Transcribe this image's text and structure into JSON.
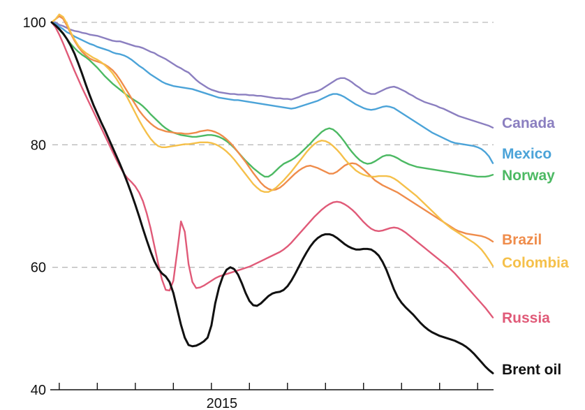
{
  "chart_data": {
    "type": "line",
    "title": "",
    "xlabel": "",
    "ylabel": "",
    "ylim": [
      40,
      100
    ],
    "yticks": [
      40,
      60,
      80,
      100
    ],
    "gridlines_at": [
      60,
      80,
      100
    ],
    "x_tick_label": "2015",
    "x_tick_label_index": 40,
    "x_tick_count": 12,
    "x_tick_spacing": 10,
    "x": [
      0,
      1,
      2,
      3,
      4,
      5,
      6,
      7,
      8,
      9,
      10,
      11,
      12,
      13,
      14,
      15,
      16,
      17,
      18,
      19,
      20,
      21,
      22,
      23,
      24,
      25,
      26,
      27,
      28,
      29,
      30,
      31,
      32,
      33,
      34,
      35,
      36,
      37,
      38,
      39,
      40,
      41,
      42,
      43,
      44,
      45,
      46,
      47,
      48,
      49,
      50,
      51,
      52,
      53,
      54,
      55,
      56,
      57,
      58,
      59,
      60,
      61,
      62,
      63,
      64,
      65,
      66,
      67,
      68,
      69,
      70,
      71,
      72,
      73,
      74,
      75,
      76,
      77,
      78,
      79,
      80,
      81,
      82,
      83,
      84,
      85,
      86,
      87,
      88,
      89,
      90,
      91,
      92,
      93,
      94,
      95,
      96,
      97,
      98,
      99,
      100,
      101,
      102,
      103,
      104,
      105,
      106,
      107,
      108,
      109,
      110,
      111,
      112,
      113,
      114,
      115,
      116
    ],
    "series": [
      {
        "name": "Canada",
        "color": "#8b7fc0",
        "values": [
          100,
          100,
          99.6,
          99.4,
          99.1,
          98.8,
          98.6,
          98.5,
          98.3,
          98.2,
          98,
          97.9,
          97.8,
          97.6,
          97.4,
          97.2,
          97,
          96.9,
          96.9,
          96.7,
          96.5,
          96.3,
          96.1,
          96,
          95.8,
          95.5,
          95.2,
          95,
          94.6,
          94.3,
          94,
          93.6,
          93.2,
          92.8,
          92.5,
          92.1,
          91.8,
          91.2,
          90.6,
          90.1,
          89.7,
          89.3,
          89,
          88.8,
          88.6,
          88.5,
          88.4,
          88.3,
          88.3,
          88.2,
          88.2,
          88.2,
          88.1,
          88.1,
          88,
          88,
          87.9,
          87.8,
          87.7,
          87.6,
          87.6,
          87.5,
          87.5,
          87.4,
          87.6,
          87.8,
          88.1,
          88.3,
          88.5,
          88.6,
          88.8,
          89.1,
          89.5,
          89.9,
          90.3,
          90.7,
          90.9,
          90.9,
          90.6,
          90.2,
          89.7,
          89.3,
          88.8,
          88.5,
          88.3,
          88.3,
          88.6,
          88.9,
          89.2,
          89.4,
          89.5,
          89.3,
          89,
          88.7,
          88.3,
          88,
          87.6,
          87.3,
          87,
          86.8,
          86.6,
          86.4,
          86.1,
          85.9,
          85.6,
          85.3,
          85,
          84.7,
          84.5,
          84.3,
          84.1,
          83.9,
          83.7,
          83.5,
          83.3,
          83.1,
          82.8
        ]
      },
      {
        "name": "Mexico",
        "color": "#4ba3d8",
        "values": [
          100,
          99.8,
          99.3,
          98.9,
          98.4,
          98.1,
          97.7,
          97.4,
          97.1,
          96.8,
          96.5,
          96.3,
          96,
          95.8,
          95.6,
          95.4,
          95.1,
          94.9,
          94.8,
          94.6,
          94.3,
          93.9,
          93.4,
          92.9,
          92.5,
          92,
          91.5,
          91.1,
          90.7,
          90.3,
          90,
          89.8,
          89.6,
          89.5,
          89.4,
          89.3,
          89.2,
          89.1,
          88.9,
          88.7,
          88.5,
          88.3,
          88.1,
          87.9,
          87.7,
          87.6,
          87.5,
          87.4,
          87.3,
          87.3,
          87.2,
          87.1,
          87,
          86.9,
          86.8,
          86.7,
          86.6,
          86.5,
          86.4,
          86.3,
          86.2,
          86.1,
          86,
          85.9,
          86,
          86.2,
          86.4,
          86.6,
          86.8,
          87,
          87.2,
          87.5,
          87.8,
          88.1,
          88.3,
          88.3,
          88.1,
          87.8,
          87.4,
          87,
          86.6,
          86.3,
          86,
          85.8,
          85.7,
          85.8,
          86,
          86.2,
          86.3,
          86.2,
          86,
          85.6,
          85.2,
          84.8,
          84.4,
          84,
          83.6,
          83.2,
          82.8,
          82.4,
          82,
          81.7,
          81.4,
          81.1,
          80.8,
          80.5,
          80.3,
          80.2,
          80.1,
          80,
          79.9,
          79.8,
          79.6,
          79.3,
          78.8,
          78.1,
          77
        ]
      },
      {
        "name": "Norway",
        "color": "#4cb963",
        "values": [
          100,
          99.5,
          98.8,
          98.1,
          97.3,
          96.5,
          95.8,
          95.2,
          94.7,
          94.3,
          93.8,
          93.2,
          92.6,
          91.9,
          91.2,
          90.6,
          90,
          89.5,
          89,
          88.5,
          88,
          87.6,
          87.2,
          86.8,
          86.3,
          85.7,
          85,
          84.4,
          83.8,
          83.2,
          82.7,
          82.3,
          82,
          81.8,
          81.6,
          81.5,
          81.4,
          81.3,
          81.3,
          81.4,
          81.5,
          81.6,
          81.6,
          81.5,
          81.3,
          81,
          80.6,
          80.1,
          79.5,
          78.8,
          78.1,
          77.4,
          76.8,
          76.2,
          75.7,
          75.2,
          74.8,
          74.8,
          75.2,
          75.8,
          76.4,
          76.9,
          77.2,
          77.5,
          77.9,
          78.4,
          79,
          79.6,
          80.2,
          80.9,
          81.5,
          82.1,
          82.5,
          82.7,
          82.5,
          82,
          81.3,
          80.5,
          79.6,
          78.8,
          78.1,
          77.5,
          77.1,
          76.9,
          77,
          77.3,
          77.7,
          78.1,
          78.3,
          78.3,
          78.1,
          77.8,
          77.4,
          77.1,
          76.8,
          76.6,
          76.4,
          76.3,
          76.2,
          76.1,
          76,
          75.9,
          75.8,
          75.7,
          75.6,
          75.5,
          75.4,
          75.3,
          75.2,
          75.1,
          75,
          74.9,
          74.8,
          74.8,
          74.8,
          74.9,
          75.1
        ]
      },
      {
        "name": "Brazil",
        "color": "#ef8c4b",
        "values": [
          100,
          100.5,
          101,
          100.6,
          99.5,
          98.2,
          97,
          96,
          95.2,
          94.6,
          94.1,
          93.8,
          93.6,
          93.4,
          93.1,
          92.7,
          92.2,
          91.5,
          90.6,
          89.6,
          88.6,
          87.6,
          86.6,
          85.6,
          84.8,
          84.1,
          83.5,
          83,
          82.6,
          82.4,
          82.2,
          82.1,
          82,
          81.9,
          81.9,
          81.8,
          81.8,
          81.9,
          82,
          82.2,
          82.3,
          82.4,
          82.3,
          82.1,
          81.8,
          81.4,
          80.9,
          80.3,
          79.6,
          78.8,
          78,
          77.2,
          76.3,
          75.4,
          74.6,
          73.8,
          73.2,
          72.8,
          72.6,
          72.7,
          73,
          73.5,
          74.1,
          74.7,
          75.3,
          75.8,
          76.2,
          76.5,
          76.6,
          76.4,
          76.2,
          75.9,
          75.6,
          75.3,
          75.3,
          75.6,
          76.1,
          76.6,
          76.9,
          77,
          76.9,
          76.5,
          76,
          75.4,
          74.8,
          74.2,
          73.8,
          73.4,
          73.1,
          72.8,
          72.5,
          72.2,
          71.8,
          71.4,
          71,
          70.6,
          70.2,
          69.8,
          69.4,
          69,
          68.6,
          68.2,
          67.8,
          67.4,
          67,
          66.6,
          66.2,
          65.9,
          65.7,
          65.5,
          65.4,
          65.3,
          65.2,
          65.1,
          64.9,
          64.6,
          64.2
        ]
      },
      {
        "name": "Colombia",
        "color": "#f5c04a",
        "values": [
          100,
          100.5,
          101.3,
          100.9,
          99.8,
          98.4,
          97.2,
          96.2,
          95.5,
          95,
          94.6,
          94.2,
          93.9,
          93.5,
          93,
          92.4,
          91.7,
          90.8,
          89.8,
          88.7,
          87.6,
          86.4,
          85.2,
          84,
          82.9,
          81.9,
          81,
          80.3,
          79.8,
          79.6,
          79.6,
          79.7,
          79.8,
          79.9,
          80,
          80.1,
          80.1,
          80.2,
          80.3,
          80.4,
          80.4,
          80.4,
          80.3,
          80.1,
          79.8,
          79.4,
          78.9,
          78.3,
          77.6,
          76.8,
          76,
          75.2,
          74.4,
          73.6,
          73,
          72.5,
          72.3,
          72.3,
          72.6,
          73,
          73.6,
          74.2,
          74.9,
          75.6,
          76.4,
          77.2,
          78,
          78.8,
          79.5,
          80.1,
          80.5,
          80.7,
          80.6,
          80.3,
          79.8,
          79.2,
          78.5,
          77.7,
          77,
          76.4,
          75.8,
          75.4,
          75.1,
          74.9,
          74.8,
          74.8,
          74.9,
          74.9,
          74.9,
          74.8,
          74.5,
          74.1,
          73.6,
          73.1,
          72.6,
          72.1,
          71.6,
          71,
          70.4,
          69.8,
          69.2,
          68.6,
          68,
          67.4,
          66.9,
          66.4,
          66,
          65.6,
          65.2,
          64.8,
          64.4,
          64,
          63.5,
          62.9,
          62.1,
          61.2,
          60.2
        ]
      },
      {
        "name": "Russia",
        "color": "#e05a78",
        "values": [
          100,
          99.2,
          98,
          96.6,
          95.1,
          93.6,
          92.1,
          90.7,
          89.3,
          88,
          86.7,
          85.4,
          84.1,
          82.8,
          81.5,
          80.2,
          78.9,
          77.6,
          76.4,
          75.3,
          74.5,
          73.9,
          73.2,
          72.2,
          70.8,
          68.8,
          66.4,
          63.5,
          60.6,
          58,
          56.3,
          56.2,
          57.8,
          62.5,
          67.5,
          65.8,
          60.5,
          57.6,
          56.6,
          56.7,
          57,
          57.4,
          57.8,
          58.2,
          58.5,
          58.7,
          58.9,
          59.1,
          59.3,
          59.5,
          59.7,
          59.9,
          60.1,
          60.4,
          60.7,
          61,
          61.3,
          61.6,
          61.9,
          62.2,
          62.5,
          62.9,
          63.4,
          64,
          64.7,
          65.4,
          66.1,
          66.8,
          67.5,
          68.2,
          68.8,
          69.4,
          69.9,
          70.3,
          70.6,
          70.7,
          70.6,
          70.3,
          69.9,
          69.4,
          68.8,
          68.1,
          67.4,
          66.8,
          66.3,
          66,
          65.9,
          66,
          66.2,
          66.4,
          66.5,
          66.4,
          66.1,
          65.7,
          65.2,
          64.7,
          64.2,
          63.7,
          63.2,
          62.7,
          62.2,
          61.7,
          61.2,
          60.7,
          60.2,
          59.6,
          59,
          58.3,
          57.6,
          56.9,
          56.2,
          55.5,
          54.8,
          54.1,
          53.4,
          52.6,
          51.8
        ]
      },
      {
        "name": "Brent oil",
        "color": "#111111",
        "values": [
          100,
          99.5,
          98.9,
          98.2,
          97.3,
          96.2,
          94.9,
          93.3,
          91.6,
          89.8,
          88.1,
          86.5,
          85.1,
          83.7,
          82.4,
          81,
          79.6,
          78.2,
          76.8,
          75.3,
          73.7,
          72,
          70.2,
          68.3,
          66.3,
          64.4,
          62.6,
          61,
          59.8,
          59,
          58.5,
          57.6,
          55.8,
          53.2,
          50.6,
          48.5,
          47.3,
          47.1,
          47.2,
          47.5,
          47.9,
          48.5,
          50.5,
          54.1,
          56.7,
          58.5,
          59.6,
          60,
          59.7,
          58.8,
          57.4,
          55.8,
          54.5,
          53.8,
          53.7,
          54.1,
          54.7,
          55.3,
          55.7,
          55.9,
          56,
          56.3,
          56.9,
          57.8,
          58.9,
          60.1,
          61.3,
          62.4,
          63.4,
          64.2,
          64.8,
          65.2,
          65.4,
          65.4,
          65.2,
          64.8,
          64.3,
          63.8,
          63.4,
          63.1,
          62.9,
          62.9,
          63,
          63,
          62.9,
          62.5,
          61.9,
          60.9,
          59.6,
          58,
          56.4,
          55.1,
          54.2,
          53.5,
          52.9,
          52.3,
          51.6,
          50.9,
          50.3,
          49.8,
          49.4,
          49.1,
          48.8,
          48.6,
          48.4,
          48.2,
          48,
          47.7,
          47.4,
          47,
          46.5,
          45.9,
          45.2,
          44.5,
          43.8,
          43.2,
          42.7
        ]
      }
    ],
    "label_order_note": ""
  }
}
